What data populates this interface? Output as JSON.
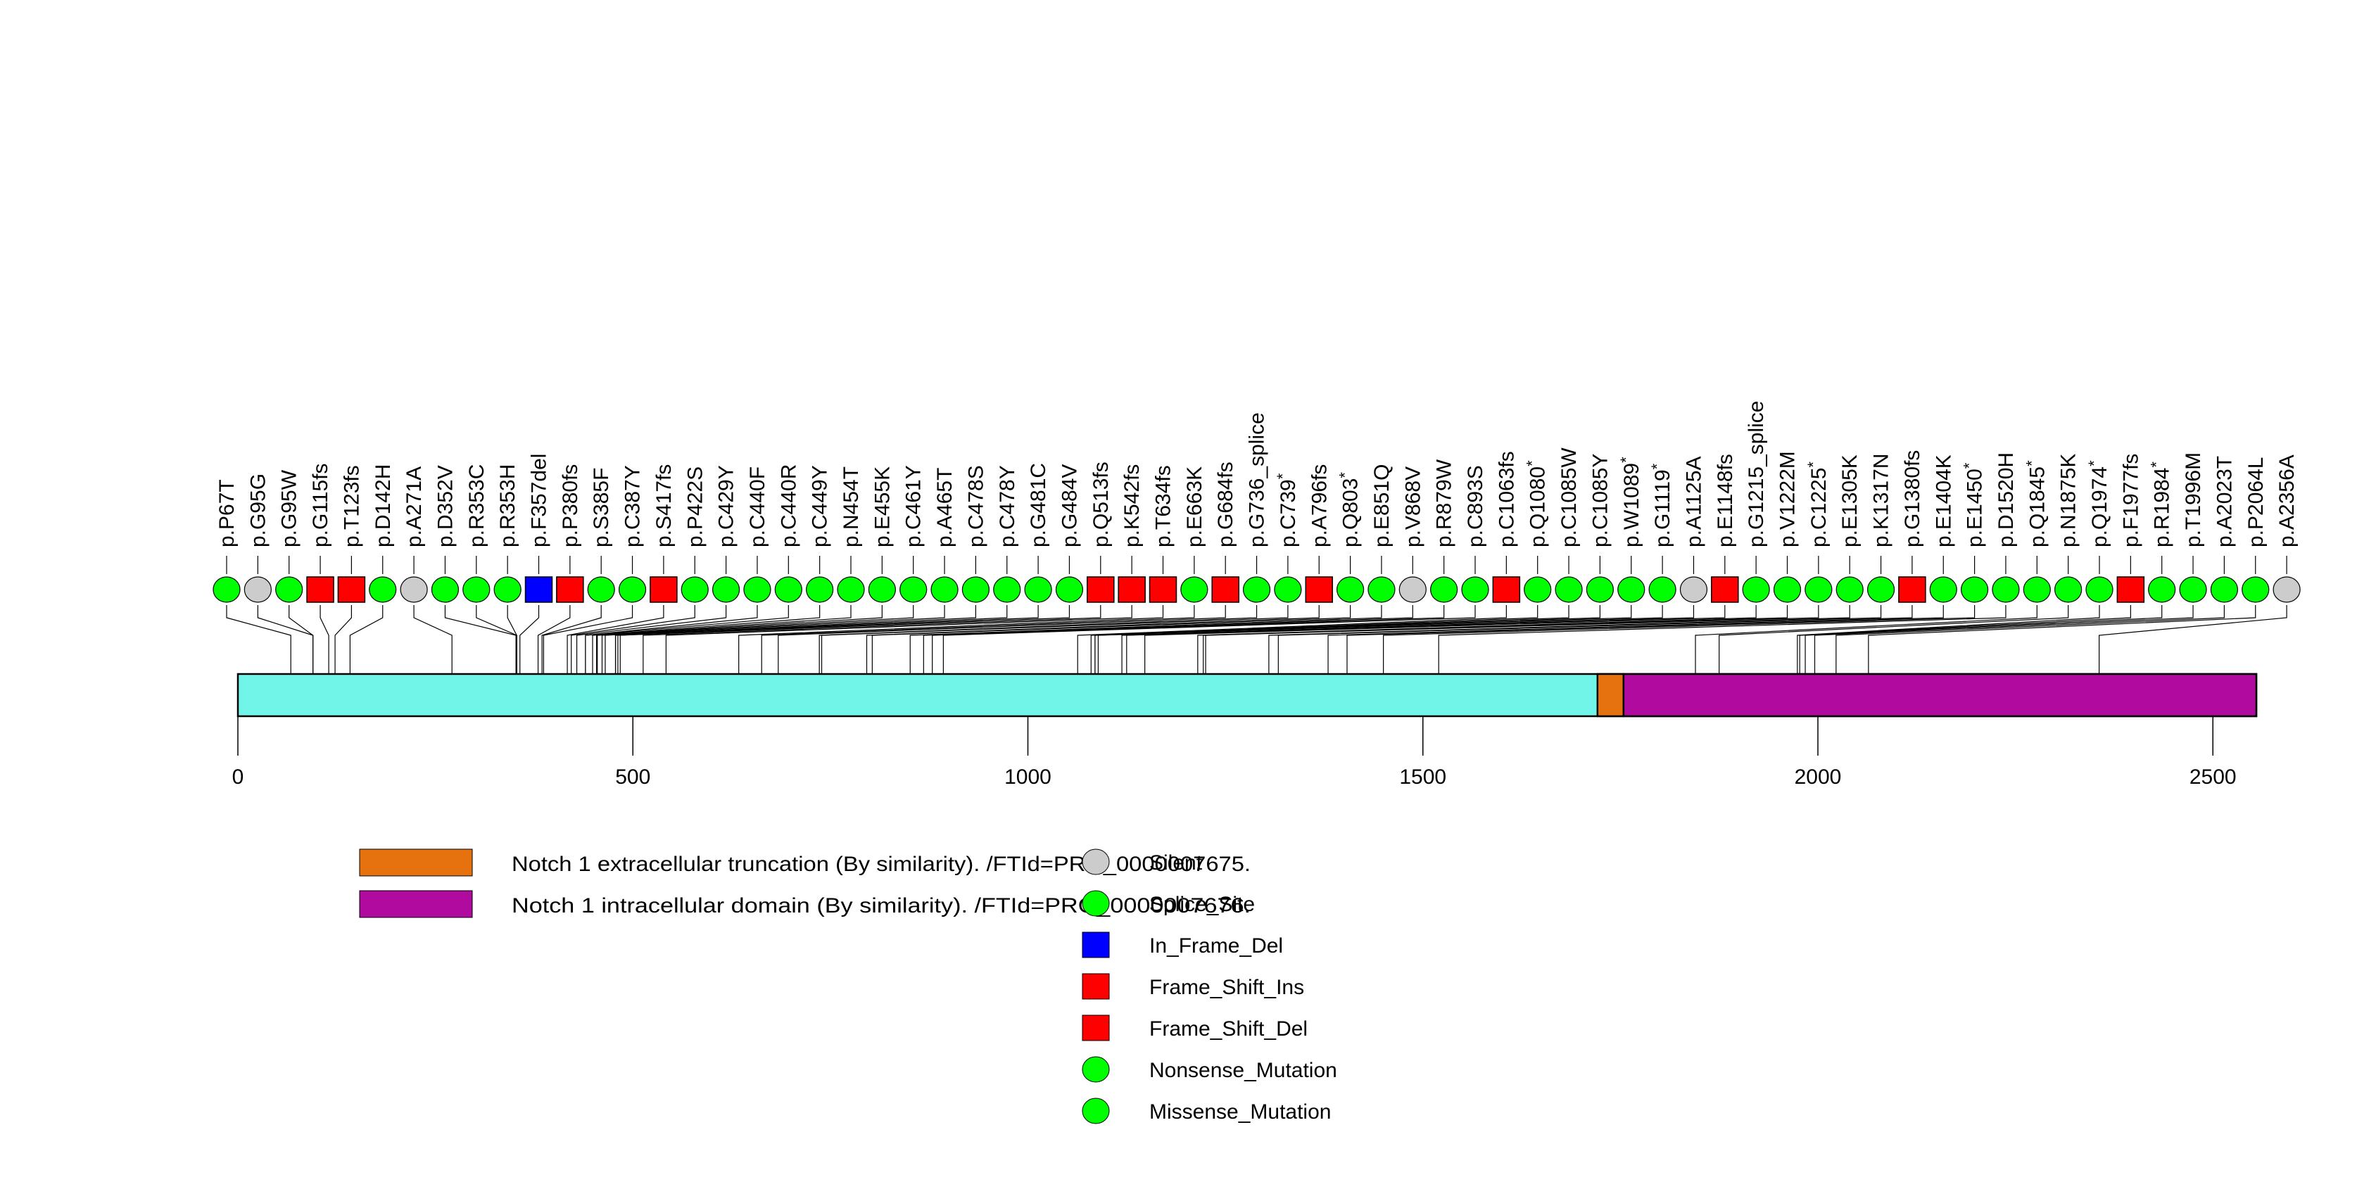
{
  "chart_data": {
    "type": "lollipop",
    "title": "",
    "xlabel": "",
    "ylabel": "",
    "protein_length": 2555,
    "xlim": [
      0,
      2555
    ],
    "x_ticks": [
      0,
      500,
      1000,
      1500,
      2000,
      2500
    ],
    "x_tick_labels": [
      "0",
      "500",
      "1000",
      "1500",
      "2000",
      "2500"
    ],
    "backbone_color": "#70f5e8",
    "domains": [
      {
        "name": "Notch 1 extracellular truncation (By similarity). /FTId=PRO_0000007675.",
        "start": 1721,
        "end": 1754,
        "color": "#e6720f"
      },
      {
        "name": "Notch 1 intracellular domain (By similarity). /FTId=PRO_0000007676.",
        "start": 1754,
        "end": 2555,
        "color": "#b00a9e"
      }
    ],
    "mutation_types": [
      {
        "name": "Silent",
        "shape": "circle",
        "color": "#cccccc"
      },
      {
        "name": "Splice_Site",
        "shape": "circle",
        "color": "#00ff00"
      },
      {
        "name": "In_Frame_Del",
        "shape": "square",
        "color": "#0000ff"
      },
      {
        "name": "Frame_Shift_Ins",
        "shape": "square",
        "color": "#ff0000"
      },
      {
        "name": "Frame_Shift_Del",
        "shape": "square",
        "color": "#ff0000"
      },
      {
        "name": "Nonsense_Mutation",
        "shape": "circle",
        "color": "#00ff00"
      },
      {
        "name": "Missense_Mutation",
        "shape": "circle",
        "color": "#00ff00"
      }
    ],
    "mutations": [
      {
        "label": "p.P67T",
        "pos": 67,
        "type": "Missense_Mutation"
      },
      {
        "label": "p.G95G",
        "pos": 95,
        "type": "Silent"
      },
      {
        "label": "p.G95W",
        "pos": 95,
        "type": "Missense_Mutation"
      },
      {
        "label": "p.G115fs",
        "pos": 115,
        "type": "Frame_Shift_Del"
      },
      {
        "label": "p.T123fs",
        "pos": 123,
        "type": "Frame_Shift_Del"
      },
      {
        "label": "p.D142H",
        "pos": 142,
        "type": "Missense_Mutation"
      },
      {
        "label": "p.A271A",
        "pos": 271,
        "type": "Silent"
      },
      {
        "label": "p.D352V",
        "pos": 352,
        "type": "Missense_Mutation"
      },
      {
        "label": "p.R353C",
        "pos": 353,
        "type": "Missense_Mutation"
      },
      {
        "label": "p.R353H",
        "pos": 353,
        "type": "Missense_Mutation"
      },
      {
        "label": "p.F357del",
        "pos": 357,
        "type": "In_Frame_Del"
      },
      {
        "label": "p.P380fs",
        "pos": 380,
        "type": "Frame_Shift_Del"
      },
      {
        "label": "p.S385F",
        "pos": 385,
        "type": "Missense_Mutation"
      },
      {
        "label": "p.C387Y",
        "pos": 387,
        "type": "Missense_Mutation"
      },
      {
        "label": "p.S417fs",
        "pos": 417,
        "type": "Frame_Shift_Del"
      },
      {
        "label": "p.P422S",
        "pos": 422,
        "type": "Missense_Mutation"
      },
      {
        "label": "p.C429Y",
        "pos": 429,
        "type": "Missense_Mutation"
      },
      {
        "label": "p.C440F",
        "pos": 440,
        "type": "Missense_Mutation"
      },
      {
        "label": "p.C440R",
        "pos": 440,
        "type": "Missense_Mutation"
      },
      {
        "label": "p.C449Y",
        "pos": 449,
        "type": "Missense_Mutation"
      },
      {
        "label": "p.N454T",
        "pos": 454,
        "type": "Missense_Mutation"
      },
      {
        "label": "p.E455K",
        "pos": 455,
        "type": "Missense_Mutation"
      },
      {
        "label": "p.C461Y",
        "pos": 461,
        "type": "Missense_Mutation"
      },
      {
        "label": "p.A465T",
        "pos": 465,
        "type": "Missense_Mutation"
      },
      {
        "label": "p.C478S",
        "pos": 478,
        "type": "Missense_Mutation"
      },
      {
        "label": "p.C478Y",
        "pos": 478,
        "type": "Missense_Mutation"
      },
      {
        "label": "p.G481C",
        "pos": 481,
        "type": "Missense_Mutation"
      },
      {
        "label": "p.G484V",
        "pos": 484,
        "type": "Missense_Mutation"
      },
      {
        "label": "p.Q513fs",
        "pos": 513,
        "type": "Frame_Shift_Del"
      },
      {
        "label": "p.K542fs",
        "pos": 542,
        "type": "Frame_Shift_Del"
      },
      {
        "label": "p.T634fs",
        "pos": 634,
        "type": "Frame_Shift_Del"
      },
      {
        "label": "p.E663K",
        "pos": 663,
        "type": "Missense_Mutation"
      },
      {
        "label": "p.G684fs",
        "pos": 684,
        "type": "Frame_Shift_Del"
      },
      {
        "label": "p.G736_splice",
        "pos": 736,
        "type": "Splice_Site"
      },
      {
        "label": "p.C739*",
        "pos": 739,
        "type": "Nonsense_Mutation"
      },
      {
        "label": "p.A796fs",
        "pos": 796,
        "type": "Frame_Shift_Del"
      },
      {
        "label": "p.Q803*",
        "pos": 803,
        "type": "Nonsense_Mutation"
      },
      {
        "label": "p.E851Q",
        "pos": 851,
        "type": "Missense_Mutation"
      },
      {
        "label": "p.V868V",
        "pos": 868,
        "type": "Silent"
      },
      {
        "label": "p.R879W",
        "pos": 879,
        "type": "Missense_Mutation"
      },
      {
        "label": "p.C893S",
        "pos": 893,
        "type": "Missense_Mutation"
      },
      {
        "label": "p.C1063fs",
        "pos": 1063,
        "type": "Frame_Shift_Del"
      },
      {
        "label": "p.Q1080*",
        "pos": 1080,
        "type": "Nonsense_Mutation"
      },
      {
        "label": "p.C1085W",
        "pos": 1085,
        "type": "Missense_Mutation"
      },
      {
        "label": "p.C1085Y",
        "pos": 1085,
        "type": "Missense_Mutation"
      },
      {
        "label": "p.W1089*",
        "pos": 1089,
        "type": "Nonsense_Mutation"
      },
      {
        "label": "p.G1119*",
        "pos": 1119,
        "type": "Nonsense_Mutation"
      },
      {
        "label": "p.A1125A",
        "pos": 1125,
        "type": "Silent"
      },
      {
        "label": "p.E1148fs",
        "pos": 1148,
        "type": "Frame_Shift_Del"
      },
      {
        "label": "p.G1215_splice",
        "pos": 1215,
        "type": "Splice_Site"
      },
      {
        "label": "p.V1222M",
        "pos": 1222,
        "type": "Missense_Mutation"
      },
      {
        "label": "p.C1225*",
        "pos": 1225,
        "type": "Nonsense_Mutation"
      },
      {
        "label": "p.E1305K",
        "pos": 1305,
        "type": "Missense_Mutation"
      },
      {
        "label": "p.K1317N",
        "pos": 1317,
        "type": "Missense_Mutation"
      },
      {
        "label": "p.G1380fs",
        "pos": 1380,
        "type": "Frame_Shift_Del"
      },
      {
        "label": "p.E1404K",
        "pos": 1404,
        "type": "Missense_Mutation"
      },
      {
        "label": "p.E1450*",
        "pos": 1450,
        "type": "Nonsense_Mutation"
      },
      {
        "label": "p.D1520H",
        "pos": 1520,
        "type": "Missense_Mutation"
      },
      {
        "label": "p.Q1845*",
        "pos": 1845,
        "type": "Nonsense_Mutation"
      },
      {
        "label": "p.N1875K",
        "pos": 1875,
        "type": "Missense_Mutation"
      },
      {
        "label": "p.Q1974*",
        "pos": 1974,
        "type": "Nonsense_Mutation"
      },
      {
        "label": "p.F1977fs",
        "pos": 1977,
        "type": "Frame_Shift_Del"
      },
      {
        "label": "p.R1984*",
        "pos": 1984,
        "type": "Nonsense_Mutation"
      },
      {
        "label": "p.T1996M",
        "pos": 1996,
        "type": "Missense_Mutation"
      },
      {
        "label": "p.A2023T",
        "pos": 2023,
        "type": "Missense_Mutation"
      },
      {
        "label": "p.P2064L",
        "pos": 2064,
        "type": "Missense_Mutation"
      },
      {
        "label": "p.A2356A",
        "pos": 2356,
        "type": "Silent"
      }
    ]
  }
}
